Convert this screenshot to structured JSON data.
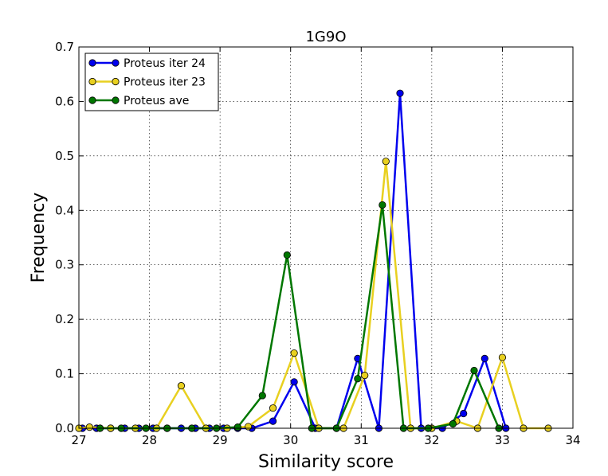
{
  "chart_data": {
    "type": "line",
    "title": "1G9O",
    "xlabel": "Similarity score",
    "ylabel": "Frequency",
    "xlim": [
      27,
      34
    ],
    "ylim": [
      0,
      0.7
    ],
    "xticks": [
      "27",
      "28",
      "29",
      "30",
      "31",
      "32",
      "33",
      "34"
    ],
    "yticks": [
      "0.0",
      "0.1",
      "0.2",
      "0.3",
      "0.4",
      "0.5",
      "0.6",
      "0.7"
    ],
    "grid": true,
    "legend_position": "top-left",
    "series": [
      {
        "name": "Proteus iter 24",
        "color": "#0000ee",
        "marker": "circle",
        "x": [
          27.05,
          27.25,
          27.45,
          27.65,
          27.85,
          28.05,
          28.25,
          28.45,
          28.65,
          28.85,
          29.05,
          29.25,
          29.45,
          29.75,
          30.05,
          30.35,
          30.65,
          30.95,
          31.25,
          31.55,
          31.85,
          32.15,
          32.45,
          32.75,
          33.05
        ],
        "y": [
          0.0,
          0.0,
          0.0,
          0.0,
          0.0,
          0.0,
          0.0,
          0.0,
          0.0,
          0.0,
          0.0,
          0.0,
          0.0,
          0.013,
          0.085,
          0.0,
          0.0,
          0.128,
          0.0,
          0.615,
          0.0,
          0.0,
          0.027,
          0.128,
          0.0
        ]
      },
      {
        "name": "Proteus iter 23",
        "color": "#e8d020",
        "marker": "circle",
        "x": [
          27.0,
          27.15,
          27.45,
          27.8,
          28.1,
          28.45,
          28.8,
          29.1,
          29.4,
          29.75,
          30.05,
          30.4,
          30.75,
          31.05,
          31.35,
          31.7,
          32.0,
          32.35,
          32.65,
          33.0,
          33.3,
          33.65
        ],
        "y": [
          0.0,
          0.002,
          0.0,
          0.0,
          0.0,
          0.078,
          0.0,
          0.0,
          0.003,
          0.037,
          0.138,
          0.0,
          0.0,
          0.097,
          0.49,
          0.0,
          0.0,
          0.013,
          0.0,
          0.13,
          0.0,
          0.0
        ]
      },
      {
        "name": "Proteus ave",
        "color": "#007700",
        "marker": "circle",
        "x": [
          27.3,
          27.6,
          27.95,
          28.25,
          28.6,
          28.95,
          29.25,
          29.6,
          29.95,
          30.3,
          30.65,
          30.95,
          31.3,
          31.6,
          31.95,
          32.3,
          32.6,
          32.95
        ],
        "y": [
          0.0,
          0.0,
          0.0,
          0.0,
          0.0,
          0.0,
          0.002,
          0.06,
          0.318,
          0.0,
          0.0,
          0.091,
          0.41,
          0.0,
          0.0,
          0.008,
          0.106,
          0.0
        ]
      }
    ]
  }
}
